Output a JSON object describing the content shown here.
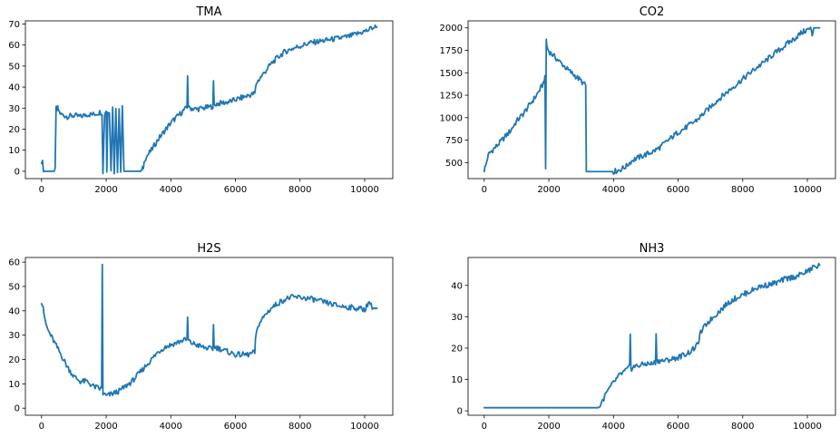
{
  "chart_data": [
    {
      "type": "line",
      "title": "TMA",
      "xlabel": "",
      "ylabel": "",
      "xlim": [
        -500,
        10870
      ],
      "ylim": [
        -3.5,
        71.5
      ],
      "xticks": [
        0,
        2000,
        4000,
        6000,
        8000,
        10000
      ],
      "yticks": [
        0,
        10,
        20,
        30,
        40,
        50,
        60,
        70
      ],
      "color": "#1f77b4",
      "grid": false,
      "series": [
        {
          "x": [
            0,
            30,
            60,
            100,
            200,
            300,
            420,
            450,
            470,
            500,
            520,
            600,
            800,
            1000,
            1200,
            1400,
            1600,
            1800,
            1870,
            1900,
            1950,
            1970,
            2000,
            2020,
            2050,
            2100,
            2150,
            2200,
            2250,
            2300,
            2350,
            2400,
            2450,
            2500,
            2550,
            2600,
            2700,
            2800,
            2900,
            3000,
            3100,
            3150,
            3200,
            3400,
            3600,
            3800,
            4000,
            4200,
            4400,
            4500,
            4520,
            4540,
            4560,
            4600,
            4800,
            5000,
            5200,
            5300,
            5320,
            5340,
            5360,
            5400,
            5600,
            5800,
            6000,
            6200,
            6400,
            6600,
            6650,
            6700,
            6900,
            7100,
            7300,
            7500,
            7700,
            7900,
            8100,
            8300,
            8500,
            8700,
            8900,
            9100,
            9300,
            9500,
            9700,
            9900,
            10100,
            10200,
            10300,
            10380
          ],
          "y": [
            5,
            4,
            1,
            0,
            0,
            0,
            0,
            30,
            29,
            30,
            29,
            27,
            26,
            26.5,
            26,
            27,
            27,
            28,
            28,
            0,
            27,
            28,
            29,
            0,
            28,
            29,
            0,
            30,
            0,
            30,
            0,
            30,
            0,
            30,
            0,
            0,
            0,
            0,
            0,
            0,
            0,
            2,
            6,
            10,
            15,
            19,
            23,
            26,
            29,
            30,
            46,
            31,
            30,
            30,
            29.5,
            30,
            30.5,
            31,
            42,
            32,
            31.5,
            32,
            32.5,
            33,
            34,
            35,
            36,
            37,
            42,
            43,
            47,
            51,
            54,
            56.5,
            58,
            59,
            60,
            61,
            61.5,
            62,
            62.5,
            63,
            63.5,
            64,
            65,
            66,
            67,
            68,
            68.5,
            68.5
          ]
        }
      ]
    },
    {
      "type": "line",
      "title": "CO2",
      "xlabel": "",
      "ylabel": "",
      "xlim": [
        -500,
        10870
      ],
      "ylim": [
        322,
        2078
      ],
      "xticks": [
        0,
        2000,
        4000,
        6000,
        8000,
        10000
      ],
      "yticks": [
        500,
        750,
        1000,
        1250,
        1500,
        1750,
        2000
      ],
      "color": "#1f77b4",
      "grid": false,
      "series": [
        {
          "x": [
            0,
            50,
            100,
            150,
            200,
            400,
            600,
            800,
            1000,
            1200,
            1400,
            1600,
            1800,
            1880,
            1900,
            1920,
            1940,
            2000,
            2200,
            2400,
            2600,
            2800,
            3000,
            3100,
            3140,
            3160,
            3400,
            3600,
            3800,
            4000,
            4200,
            4400,
            4500,
            4600,
            4800,
            5000,
            5200,
            5400,
            5600,
            5800,
            6000,
            6200,
            6400,
            6600,
            6800,
            7000,
            7200,
            7400,
            7600,
            7800,
            8000,
            8200,
            8400,
            8600,
            8800,
            9000,
            9200,
            9400,
            9600,
            9800,
            10000,
            10100,
            10150,
            10200,
            10300,
            10380
          ],
          "y": [
            420,
            470,
            550,
            600,
            620,
            690,
            770,
            850,
            960,
            1040,
            1140,
            1240,
            1360,
            1440,
            430,
            1880,
            1790,
            1740,
            1670,
            1600,
            1530,
            1470,
            1410,
            1370,
            1360,
            400,
            400,
            400,
            400,
            400,
            420,
            460,
            500,
            530,
            560,
            590,
            620,
            660,
            720,
            780,
            840,
            880,
            930,
            980,
            1050,
            1120,
            1190,
            1250,
            1310,
            1370,
            1430,
            1490,
            1550,
            1600,
            1660,
            1720,
            1770,
            1830,
            1880,
            1940,
            1980,
            1990,
            1920,
            2000,
            2000,
            2000
          ]
        }
      ]
    },
    {
      "type": "line",
      "title": "H2S",
      "xlabel": "",
      "ylabel": "",
      "xlim": [
        -500,
        10870
      ],
      "ylim": [
        -2.9,
        61.9
      ],
      "xticks": [
        0,
        2000,
        4000,
        6000,
        8000,
        10000
      ],
      "yticks": [
        0,
        10,
        20,
        30,
        40,
        50,
        60
      ],
      "color": "#1f77b4",
      "grid": false,
      "series": [
        {
          "x": [
            0,
            50,
            100,
            200,
            400,
            600,
            800,
            1000,
            1200,
            1400,
            1600,
            1800,
            1860,
            1880,
            1900,
            2000,
            2200,
            2400,
            2600,
            2800,
            3000,
            3200,
            3400,
            3600,
            3800,
            4000,
            4200,
            4400,
            4500,
            4520,
            4540,
            4560,
            4600,
            4800,
            5000,
            5200,
            5300,
            5320,
            5340,
            5400,
            5600,
            5800,
            6000,
            6200,
            6400,
            6600,
            6620,
            6700,
            6900,
            7100,
            7300,
            7500,
            7700,
            8000,
            8300,
            8600,
            8900,
            9200,
            9500,
            9800,
            10000,
            10150,
            10200,
            10300,
            10380
          ],
          "y": [
            44,
            42,
            36,
            32,
            27,
            22,
            17,
            13,
            11,
            11,
            9,
            8,
            8,
            59,
            6,
            5,
            6,
            7,
            9,
            11,
            14,
            17,
            20,
            23,
            25,
            26,
            27,
            28,
            28,
            37,
            28,
            27.5,
            27,
            26,
            25,
            24.5,
            24,
            35,
            25,
            25,
            24,
            23,
            22,
            22,
            22,
            23,
            28,
            34,
            38,
            41,
            43,
            44.5,
            45.5,
            45.5,
            45,
            44,
            43,
            42,
            41.5,
            41,
            40.5,
            44,
            42,
            41,
            41
          ]
        }
      ]
    },
    {
      "type": "line",
      "title": "NH3",
      "xlabel": "",
      "ylabel": "",
      "xlim": [
        -500,
        10870
      ],
      "ylim": [
        -1.4,
        48.9
      ],
      "xticks": [
        0,
        2000,
        4000,
        6000,
        8000,
        10000
      ],
      "yticks": [
        0,
        10,
        20,
        30,
        40
      ],
      "color": "#1f77b4",
      "grid": false,
      "series": [
        {
          "x": [
            0,
            1000,
            2000,
            3000,
            3500,
            3550,
            3600,
            3700,
            3800,
            4000,
            4200,
            4400,
            4500,
            4520,
            4540,
            4560,
            4600,
            4800,
            5000,
            5200,
            5300,
            5320,
            5340,
            5400,
            5600,
            5800,
            6000,
            6200,
            6400,
            6600,
            6650,
            6700,
            6900,
            7100,
            7300,
            7500,
            7700,
            7900,
            8100,
            8300,
            8500,
            8700,
            8900,
            9100,
            9300,
            9500,
            9700,
            9900,
            10100,
            10200,
            10300,
            10380
          ],
          "y": [
            1,
            1,
            1,
            1,
            1,
            1,
            2,
            4,
            6,
            9,
            11.5,
            13,
            14,
            24,
            14,
            13.5,
            14,
            14.5,
            15,
            15,
            15.5,
            25,
            16,
            16,
            16,
            16.5,
            17,
            18,
            19,
            21,
            23,
            25,
            28,
            30,
            32,
            34,
            35.5,
            36.5,
            37.5,
            38.5,
            39.5,
            40,
            40.5,
            41,
            42,
            42.5,
            43,
            44,
            45,
            46,
            46,
            46.5
          ]
        }
      ]
    }
  ]
}
